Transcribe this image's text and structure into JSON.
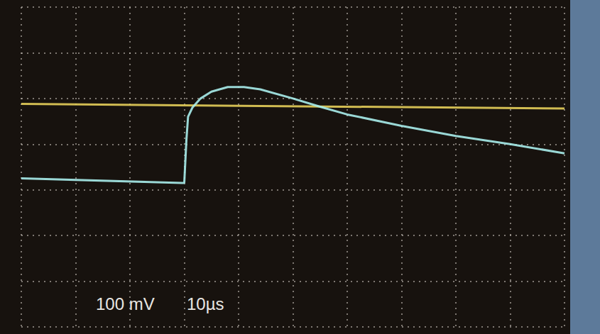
{
  "chart_data": {
    "type": "line",
    "annotations": [
      "100 mV",
      "10µs"
    ],
    "xlim": [
      -50,
      50
    ],
    "xticks": [
      -50,
      -40,
      -30,
      -20,
      -10,
      0,
      10,
      20,
      30,
      40,
      50
    ],
    "ylim": [
      -300,
      400
    ],
    "yticks": [
      -300,
      -200,
      -100,
      0,
      100,
      200,
      300,
      400
    ],
    "grid": true,
    "tick_labels": false,
    "series": [
      {
        "color": "#e6cf5a",
        "x": [
          -50,
          50
        ],
        "values": [
          188,
          178
        ]
      },
      {
        "color": "#a8eeec",
        "x": [
          -50,
          -20,
          -19.6,
          -19.3,
          -18.5,
          -17,
          -15,
          -12,
          -9,
          -6,
          0,
          5,
          10,
          20,
          30,
          40,
          50
        ],
        "values": [
          25,
          15,
          110,
          160,
          180,
          200,
          215,
          225,
          225,
          220,
          200,
          182,
          165,
          140,
          118,
          100,
          80
        ]
      }
    ]
  }
}
